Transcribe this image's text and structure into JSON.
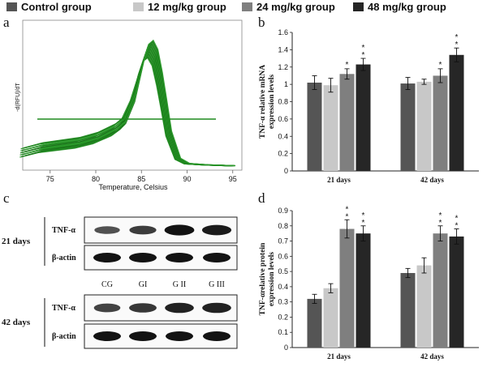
{
  "legend": [
    {
      "label": "Control group",
      "color": "#555555"
    },
    {
      "label": "12 mg/kg group",
      "color": "#c8c8c8"
    },
    {
      "label": "24 mg/kg group",
      "color": "#7f7f7f"
    },
    {
      "label": "48 mg/kg group",
      "color": "#262626"
    }
  ],
  "panels": {
    "a": "a",
    "b": "b",
    "c": "c",
    "d": "d"
  },
  "chart_data": [
    {
      "panel": "a",
      "type": "line",
      "title": "",
      "xlabel": "Temperature, Celsius",
      "ylabel": "-d(RFU)/dT",
      "xlim": [
        72,
        96
      ],
      "xticks": [
        75,
        80,
        85,
        90,
        95
      ],
      "threshold_line": true,
      "curve_x": [
        72,
        74,
        76,
        78,
        80,
        82,
        83,
        84,
        85,
        85.5,
        86,
        86.5,
        87,
        87.5,
        88,
        89,
        90,
        92,
        94,
        95
      ],
      "curve_y": [
        0.08,
        0.12,
        0.14,
        0.16,
        0.2,
        0.27,
        0.33,
        0.5,
        0.82,
        0.94,
        0.97,
        0.9,
        0.72,
        0.5,
        0.27,
        0.06,
        0.02,
        0.01,
        0.005,
        0.003
      ],
      "color": "#1f8a1f"
    },
    {
      "panel": "b",
      "type": "bar",
      "ylabel": "TNF-α relative mRNA expression levels",
      "ylim": [
        0,
        1.6
      ],
      "yticks": [
        0,
        0.2,
        0.4,
        0.6,
        0.8,
        1,
        1.2,
        1.4,
        1.6
      ],
      "categories": [
        "21 days",
        "42 days"
      ],
      "series": [
        {
          "name": "Control group",
          "values": [
            1.02,
            1.01
          ],
          "errors": [
            0.08,
            0.07
          ],
          "stars": [
            "",
            ""
          ]
        },
        {
          "name": "12 mg/kg group",
          "values": [
            0.99,
            1.03
          ],
          "errors": [
            0.08,
            0.03
          ],
          "stars": [
            "",
            ""
          ]
        },
        {
          "name": "24 mg/kg group",
          "values": [
            1.12,
            1.1
          ],
          "errors": [
            0.06,
            0.08
          ],
          "stars": [
            "*",
            "*"
          ]
        },
        {
          "name": "48 mg/kg group",
          "values": [
            1.23,
            1.34
          ],
          "errors": [
            0.07,
            0.08
          ],
          "stars": [
            "**",
            "**"
          ]
        }
      ]
    },
    {
      "panel": "d",
      "type": "bar",
      "ylabel": "TNF-αrelative protein expression levels",
      "ylim": [
        0,
        0.9
      ],
      "yticks": [
        0,
        0.1,
        0.2,
        0.3,
        0.4,
        0.5,
        0.6,
        0.7,
        0.8,
        0.9
      ],
      "categories": [
        "21 days",
        "42 days"
      ],
      "series": [
        {
          "name": "Control group",
          "values": [
            0.32,
            0.49
          ],
          "errors": [
            0.03,
            0.03
          ],
          "stars": [
            "",
            ""
          ]
        },
        {
          "name": "12 mg/kg group",
          "values": [
            0.39,
            0.54
          ],
          "errors": [
            0.03,
            0.05
          ],
          "stars": [
            "",
            ""
          ]
        },
        {
          "name": "24 mg/kg group",
          "values": [
            0.78,
            0.75
          ],
          "errors": [
            0.06,
            0.05
          ],
          "stars": [
            "**",
            "**"
          ]
        },
        {
          "name": "48 mg/kg group",
          "values": [
            0.75,
            0.73
          ],
          "errors": [
            0.05,
            0.05
          ],
          "stars": [
            "**",
            "**"
          ]
        }
      ]
    }
  ],
  "blot": {
    "lanes": [
      "CG",
      "GI",
      "G II",
      "G III"
    ],
    "days": [
      "21 days",
      "42 days"
    ],
    "rows": [
      "TNF-α",
      "β-actin"
    ],
    "tnf_21_intensity": [
      0.45,
      0.6,
      0.9,
      0.85
    ],
    "tnf_42_intensity": [
      0.55,
      0.65,
      0.8,
      0.8
    ]
  }
}
